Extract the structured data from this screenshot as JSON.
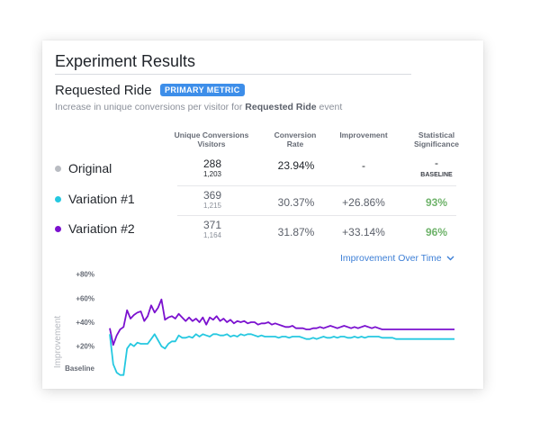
{
  "card": {
    "title": "Experiment Results",
    "metric_name": "Requested Ride",
    "metric_badge": "PRIMARY METRIC",
    "subtitle_prefix": "Increase in unique conversions per visitor for ",
    "subtitle_event": "Requested Ride",
    "subtitle_suffix": " event"
  },
  "table": {
    "headers": {
      "conversions_line1": "Unique Conversions",
      "conversions_line2": "Visitors",
      "rate_line1": "Conversion",
      "rate_line2": "Rate",
      "improvement": "Improvement",
      "significance_line1": "Statistical",
      "significance_line2": "Significance"
    },
    "rows": [
      {
        "name": "Original",
        "dot_color": "#b9bcc2",
        "conversions": "288",
        "visitors": "1,203",
        "rate": "23.94%",
        "improvement": "-",
        "significance": "-",
        "significance_note": "BASELINE",
        "value_color": "#1f2329",
        "sig_color": "#1f2329"
      },
      {
        "name": "Variation #1",
        "dot_color": "#25c8e0",
        "conversions": "369",
        "visitors": "1,215",
        "rate": "30.37%",
        "improvement": "+26.86%",
        "significance": "93%",
        "significance_note": "",
        "value_color": "#5b606a",
        "sig_color": "#6fb36b"
      },
      {
        "name": "Variation #2",
        "dot_color": "#7b11cf",
        "conversions": "371",
        "visitors": "1,164",
        "rate": "31.87%",
        "improvement": "+33.14%",
        "significance": "96%",
        "significance_note": "",
        "value_color": "#5b606a",
        "sig_color": "#6fb36b"
      }
    ]
  },
  "chart_link": {
    "label": "Improvement Over Time",
    "icon": "chevron-down-icon"
  },
  "chart_data": {
    "type": "line",
    "ylabel": "Improvement",
    "yticks": [
      "+80%",
      "+60%",
      "+40%",
      "+20%"
    ],
    "ytick_values": [
      80,
      60,
      40,
      20
    ],
    "baseline_label": "Baseline",
    "ylim": [
      -5,
      85
    ],
    "grid": false,
    "x": [
      0,
      1,
      2,
      3,
      4,
      5,
      6,
      7,
      8,
      9,
      10,
      11,
      12,
      13,
      14,
      15,
      16,
      17,
      18,
      19,
      20,
      21,
      22,
      23,
      24,
      25,
      26,
      27,
      28,
      29,
      30,
      31,
      32,
      33,
      34,
      35,
      36,
      37,
      38,
      39,
      40,
      41,
      42,
      43,
      44,
      45,
      46,
      47,
      48,
      49,
      50,
      51,
      52,
      53,
      54,
      55,
      56,
      57,
      58,
      59,
      60,
      61,
      62,
      63,
      64,
      65,
      66,
      67,
      68,
      69,
      70,
      71,
      72,
      73,
      74,
      75,
      76,
      77,
      78,
      79,
      80,
      81,
      82,
      83,
      84,
      85,
      86,
      87,
      88,
      89,
      90,
      91,
      92,
      93,
      94,
      95,
      96,
      97,
      98,
      99,
      100
    ],
    "series": [
      {
        "color": "#7b11cf",
        "values": [
          35,
          21,
          29,
          34,
          36,
          50,
          43,
          46,
          48,
          49,
          41,
          45,
          54,
          48,
          52,
          59,
          42,
          44,
          45,
          43,
          47,
          44,
          41,
          44,
          41,
          43,
          40,
          44,
          38,
          44,
          42,
          45,
          41,
          43,
          40,
          42,
          39,
          41,
          40,
          41,
          39,
          40,
          40,
          38,
          39,
          39,
          40,
          38,
          39,
          38,
          37,
          36,
          36,
          37,
          35,
          35,
          35,
          34,
          34,
          35,
          35,
          36,
          35,
          36,
          37,
          36,
          35,
          36,
          37,
          36,
          35,
          36,
          35,
          36,
          37,
          36,
          35,
          36,
          35,
          34,
          34,
          34,
          34,
          34,
          34,
          34,
          34,
          34,
          34,
          34,
          34,
          34,
          34,
          34,
          34,
          34,
          34,
          34,
          34,
          34,
          34
        ]
      },
      {
        "color": "#25c8e0",
        "values": [
          30,
          5,
          -2,
          -4,
          -4,
          18,
          22,
          20,
          23,
          22,
          22,
          22,
          26,
          30,
          25,
          20,
          18,
          22,
          24,
          24,
          29,
          27,
          27,
          28,
          27,
          30,
          28,
          30,
          29,
          28,
          30,
          30,
          29,
          29,
          30,
          28,
          29,
          28,
          30,
          29,
          30,
          30,
          29,
          28,
          29,
          28,
          28,
          28,
          28,
          27,
          28,
          28,
          27,
          28,
          28,
          28,
          27,
          26,
          26,
          27,
          26,
          27,
          28,
          27,
          27,
          28,
          27,
          28,
          28,
          27,
          27,
          28,
          27,
          28,
          27,
          28,
          28,
          28,
          28,
          27,
          27,
          27,
          27,
          26,
          26,
          26,
          26,
          26,
          26,
          26,
          26,
          26,
          26,
          26,
          26,
          26,
          26,
          26,
          26,
          26,
          26
        ]
      }
    ]
  }
}
